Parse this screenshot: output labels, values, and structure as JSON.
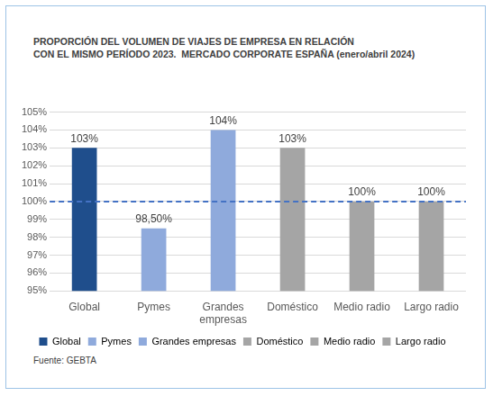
{
  "chart_data": {
    "type": "bar",
    "title": [
      "PROPORCIÓN DEL VOLUMEN DE VIAJES DE EMPRESA EN RELACIÓN",
      "CON EL MISMO PERÍODO 2023.  MERCADO CORPORATE ESPAÑA (enero/abril 2024)"
    ],
    "source": "Fuente: GEBTA",
    "categories": [
      "Global",
      "Pymes",
      "Grandes empresas",
      "Doméstico",
      "Medio radio",
      "Largo radio"
    ],
    "values": [
      103,
      98.5,
      104,
      103,
      100,
      100
    ],
    "value_labels": [
      "103%",
      "98,50%",
      "104%",
      "103%",
      "100%",
      "100%"
    ],
    "colors": [
      "#1f4e8c",
      "#8faadc",
      "#8faadc",
      "#a5a5a5",
      "#a5a5a5",
      "#a5a5a5"
    ],
    "ylim": [
      95,
      105
    ],
    "yticks": [
      {
        "value": 95,
        "label": "95%"
      },
      {
        "value": 96,
        "label": "96%"
      },
      {
        "value": 97,
        "label": "97%"
      },
      {
        "value": 98,
        "label": "98%"
      },
      {
        "value": 99,
        "label": "99%"
      },
      {
        "value": 100,
        "label": "100%"
      },
      {
        "value": 101,
        "label": "101%"
      },
      {
        "value": 102,
        "label": "102%"
      },
      {
        "value": 103,
        "label": "103%"
      },
      {
        "value": 104,
        "label": "104%"
      },
      {
        "value": 105,
        "label": "105%"
      }
    ],
    "reference_line": {
      "value": 100,
      "color": "#4472c4",
      "line_style": "dashed"
    },
    "grid": true,
    "legend": "bottom",
    "data_labels": true
  }
}
